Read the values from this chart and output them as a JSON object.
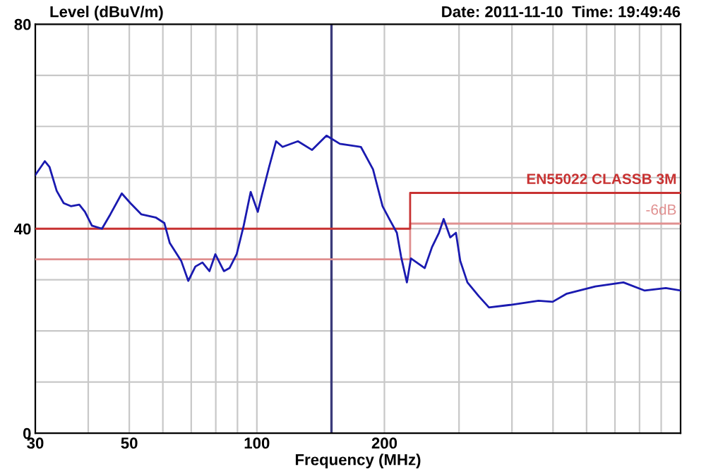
{
  "chart_data": {
    "type": "line",
    "ylabel": "Level (dBuV/m)",
    "xlabel": "Frequency (MHz)",
    "annotations": [
      "Date: 2011-11-10  Time: 19:49:46"
    ],
    "log": "x",
    "xlim": [
      30,
      1000
    ],
    "ylim": [
      0,
      80
    ],
    "xticks": [
      30,
      {
        "value": 40,
        "label": null
      },
      50,
      {
        "value": 60,
        "label": null
      },
      {
        "value": 70,
        "label": null
      },
      {
        "value": 80,
        "label": null
      },
      {
        "value": 90,
        "label": null
      },
      100,
      200,
      {
        "value": 300,
        "label": null
      },
      {
        "value": 400,
        "label": null
      },
      {
        "value": 500,
        "label": null
      },
      {
        "value": 600,
        "label": null
      },
      {
        "value": 700,
        "label": null
      },
      {
        "value": 800,
        "label": null
      },
      {
        "value": 900,
        "label": null
      }
    ],
    "yticks": [
      0,
      {
        "value": 10,
        "label": null
      },
      {
        "value": 20,
        "label": null
      },
      {
        "value": 30,
        "label": null
      },
      40,
      {
        "value": 50,
        "label": null
      },
      {
        "value": 60,
        "label": null
      },
      {
        "value": 70,
        "label": null
      },
      80
    ],
    "grid": true,
    "legend": false,
    "marker": "none",
    "line_style": "solid",
    "ref_lines": [
      {
        "axis": "x",
        "value": 150,
        "label": null,
        "color": "#3a3a7a"
      }
    ],
    "series": [
      {
        "color": "#1a1ab0",
        "x": [
          30,
          31.6,
          32.4,
          33.7,
          35.0,
          36.4,
          38.1,
          39.3,
          40.8,
          43.1,
          45.1,
          48.0,
          50.3,
          53.4,
          57.7,
          60.5,
          62.3,
          66.3,
          68.9,
          71.6,
          74.4,
          77.3,
          79.8,
          83.6,
          86.2,
          89.6,
          93.1,
          96.7,
          100.5,
          102.8,
          106.9,
          111,
          115,
          125,
          135,
          146,
          157,
          176,
          188,
          198,
          206,
          214,
          219,
          226,
          231,
          249,
          259,
          269,
          276,
          286,
          295,
          302,
          314,
          334,
          353,
          396,
          462,
          499,
          539,
          629,
          733,
          823,
          923,
          1000
        ],
        "values": [
          50.5,
          53.2,
          52.1,
          47.4,
          45.0,
          44.4,
          44.7,
          43.3,
          40.6,
          40.0,
          42.8,
          46.9,
          45.0,
          42.8,
          42.2,
          41.1,
          37.2,
          33.7,
          29.8,
          32.6,
          33.4,
          31.7,
          35.0,
          31.7,
          32.3,
          35.0,
          40.6,
          47.2,
          43.3,
          46.6,
          52.1,
          57.1,
          56.0,
          57.1,
          55.4,
          58.2,
          56.6,
          56.0,
          51.6,
          44.4,
          41.7,
          39.2,
          34.5,
          29.5,
          34.2,
          32.3,
          36.4,
          39.2,
          41.9,
          38.3,
          39.2,
          33.7,
          29.5,
          26.8,
          24.6,
          25.1,
          25.9,
          25.7,
          27.3,
          28.7,
          29.5,
          27.9,
          28.4,
          27.9
        ]
      },
      {
        "name": "EN55022 CLASSB 3M",
        "color": "#c83232",
        "x": [
          30,
          230,
          230,
          1000
        ],
        "values": [
          40,
          40,
          47,
          47
        ]
      },
      {
        "name": "-6dB",
        "color": "#e09090",
        "x": [
          30,
          230,
          230,
          1000
        ],
        "values": [
          34,
          34,
          41,
          41
        ]
      }
    ]
  }
}
